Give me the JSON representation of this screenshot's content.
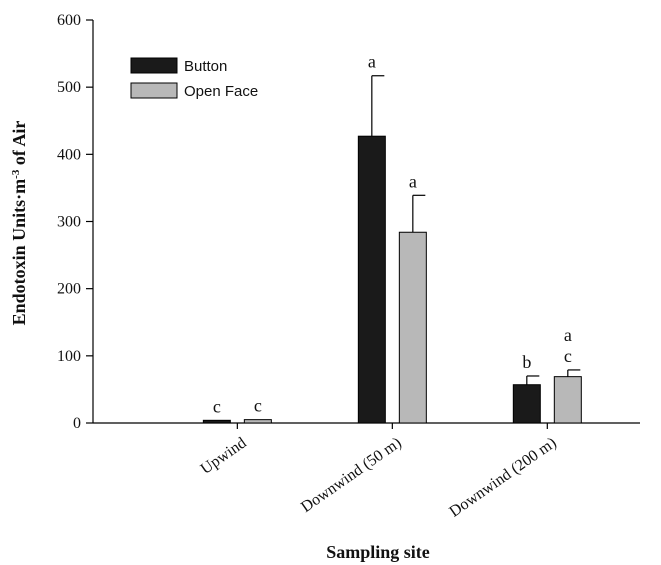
{
  "chart_data": {
    "type": "bar",
    "title": "",
    "xlabel": "Sampling site",
    "ylabel_parts": [
      "Endotoxin Units·m",
      "-3",
      " of Air"
    ],
    "ylim": [
      0,
      600
    ],
    "yticks": [
      0,
      100,
      200,
      300,
      400,
      500,
      600
    ],
    "grid": false,
    "legend_position": "top-left",
    "categories": [
      "Upwind",
      "Downwind (50 m)",
      "Downwind (200 m)"
    ],
    "series": [
      {
        "name": "Button",
        "color": "#1a1a1a",
        "values": [
          4,
          427,
          57
        ],
        "errors": [
          0,
          90,
          13
        ],
        "labels": [
          "c",
          "a",
          "b"
        ]
      },
      {
        "name": "Open Face",
        "color": "#b8b8b8",
        "values": [
          5,
          284,
          69
        ],
        "errors": [
          0,
          55,
          10
        ],
        "labels": [
          "c",
          "a",
          "a\nc"
        ]
      }
    ]
  }
}
